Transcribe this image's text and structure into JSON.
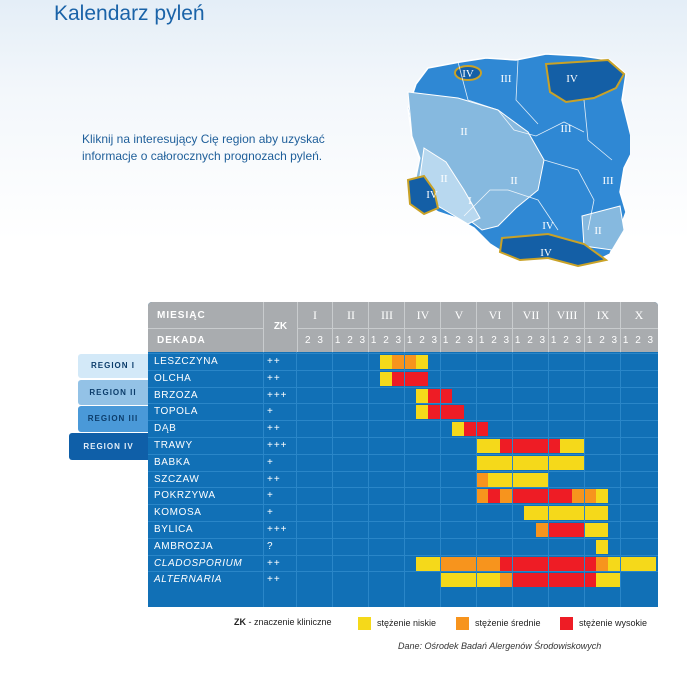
{
  "title": "Kalendarz pyleń",
  "intro": "Kliknij na interesujący Cię region aby uzyskać informacje o całorocznych prognozach pyleń.",
  "map_labels": {
    "r1": "I",
    "r2": "II",
    "r3": "III",
    "r4": "IV"
  },
  "region_buttons": [
    "REGION I",
    "REGION II",
    "REGION III",
    "REGION IV"
  ],
  "table": {
    "month_header": "MIESIĄC",
    "decade_header": "DEKADA",
    "zk_header": "ZK",
    "months": [
      "I",
      "II",
      "III",
      "IV",
      "V",
      "VI",
      "VII",
      "VIII",
      "IX",
      "X"
    ],
    "decade_label": "1 2 3",
    "first_decade_label": "2 3",
    "rows": [
      {
        "name": "LESZCZYNA",
        "zk": "++",
        "italic": false,
        "cells": [
          [
            7,
            "y"
          ],
          [
            8,
            "o"
          ],
          [
            9,
            "o"
          ],
          [
            10,
            "y"
          ]
        ]
      },
      {
        "name": "OLCHA",
        "zk": "++",
        "italic": false,
        "cells": [
          [
            7,
            "y"
          ],
          [
            8,
            "r"
          ],
          [
            9,
            "r"
          ],
          [
            10,
            "r"
          ]
        ]
      },
      {
        "name": "BRZOZA",
        "zk": "+++",
        "italic": false,
        "cells": [
          [
            10,
            "y"
          ],
          [
            11,
            "r"
          ],
          [
            12,
            "r"
          ]
        ]
      },
      {
        "name": "TOPOLA",
        "zk": "+",
        "italic": false,
        "cells": [
          [
            10,
            "y"
          ],
          [
            11,
            "r"
          ],
          [
            12,
            "r"
          ],
          [
            13,
            "r"
          ]
        ]
      },
      {
        "name": "DĄB",
        "zk": "++",
        "italic": false,
        "cells": [
          [
            13,
            "y"
          ],
          [
            14,
            "r"
          ],
          [
            15,
            "r"
          ]
        ]
      },
      {
        "name": "TRAWY",
        "zk": "+++",
        "italic": false,
        "cells": [
          [
            15,
            "y"
          ],
          [
            16,
            "y"
          ],
          [
            17,
            "r"
          ],
          [
            18,
            "r"
          ],
          [
            19,
            "r"
          ],
          [
            20,
            "r"
          ],
          [
            21,
            "r"
          ],
          [
            22,
            "y"
          ],
          [
            23,
            "y"
          ]
        ]
      },
      {
        "name": "BABKA",
        "zk": "+",
        "italic": false,
        "cells": [
          [
            15,
            "y"
          ],
          [
            16,
            "y"
          ],
          [
            17,
            "y"
          ],
          [
            18,
            "y"
          ],
          [
            19,
            "y"
          ],
          [
            20,
            "y"
          ],
          [
            21,
            "y"
          ],
          [
            22,
            "y"
          ],
          [
            23,
            "y"
          ]
        ]
      },
      {
        "name": "SZCZAW",
        "zk": "++",
        "italic": false,
        "cells": [
          [
            15,
            "o"
          ],
          [
            16,
            "y"
          ],
          [
            17,
            "y"
          ],
          [
            18,
            "y"
          ],
          [
            19,
            "y"
          ],
          [
            20,
            "y"
          ]
        ]
      },
      {
        "name": "POKRZYWA",
        "zk": "+",
        "italic": false,
        "cells": [
          [
            15,
            "o"
          ],
          [
            16,
            "r"
          ],
          [
            17,
            "o"
          ],
          [
            18,
            "r"
          ],
          [
            19,
            "r"
          ],
          [
            20,
            "r"
          ],
          [
            21,
            "r"
          ],
          [
            22,
            "r"
          ],
          [
            23,
            "o"
          ],
          [
            24,
            "o"
          ],
          [
            25,
            "y"
          ]
        ]
      },
      {
        "name": "KOMOSA",
        "zk": "+",
        "italic": false,
        "cells": [
          [
            19,
            "y"
          ],
          [
            20,
            "y"
          ],
          [
            21,
            "y"
          ],
          [
            22,
            "y"
          ],
          [
            23,
            "y"
          ],
          [
            24,
            "y"
          ],
          [
            25,
            "y"
          ]
        ]
      },
      {
        "name": "BYLICA",
        "zk": "+++",
        "italic": false,
        "cells": [
          [
            20,
            "o"
          ],
          [
            21,
            "r"
          ],
          [
            22,
            "r"
          ],
          [
            23,
            "r"
          ],
          [
            24,
            "y"
          ],
          [
            25,
            "y"
          ]
        ]
      },
      {
        "name": "AMBROZJA",
        "zk": "?",
        "italic": false,
        "cells": [
          [
            25,
            "y"
          ]
        ]
      },
      {
        "name": "CLADOSPORIUM",
        "zk": "++",
        "italic": true,
        "cells": [
          [
            10,
            "y"
          ],
          [
            11,
            "y"
          ],
          [
            12,
            "o"
          ],
          [
            13,
            "o"
          ],
          [
            14,
            "o"
          ],
          [
            15,
            "o"
          ],
          [
            16,
            "o"
          ],
          [
            17,
            "r"
          ],
          [
            18,
            "r"
          ],
          [
            19,
            "r"
          ],
          [
            20,
            "r"
          ],
          [
            21,
            "r"
          ],
          [
            22,
            "r"
          ],
          [
            23,
            "r"
          ],
          [
            24,
            "r"
          ],
          [
            25,
            "o"
          ],
          [
            26,
            "y"
          ],
          [
            27,
            "y"
          ],
          [
            28,
            "y"
          ],
          [
            29,
            "y"
          ]
        ]
      },
      {
        "name": "ALTERNARIA",
        "zk": "++",
        "italic": true,
        "cells": [
          [
            12,
            "y"
          ],
          [
            13,
            "y"
          ],
          [
            14,
            "y"
          ],
          [
            15,
            "y"
          ],
          [
            16,
            "y"
          ],
          [
            17,
            "o"
          ],
          [
            18,
            "r"
          ],
          [
            19,
            "r"
          ],
          [
            20,
            "r"
          ],
          [
            21,
            "r"
          ],
          [
            22,
            "r"
          ],
          [
            23,
            "r"
          ],
          [
            24,
            "r"
          ],
          [
            25,
            "y"
          ],
          [
            26,
            "y"
          ]
        ]
      }
    ]
  },
  "legend": {
    "zk_abbr": "ZK",
    "zk_text": " - znaczenie kliniczne",
    "low": "stężenie niskie",
    "medium": "stężenie średnie",
    "high": "stężenie wysokie"
  },
  "source": "Dane: Ośrodek Badań Alergenów Środowiskowych",
  "colors": {
    "low": "#f5d91a",
    "medium": "#f7941d",
    "high": "#ee1c25",
    "table_bg": "#1170b6",
    "header_bg": "#a9acaf"
  }
}
